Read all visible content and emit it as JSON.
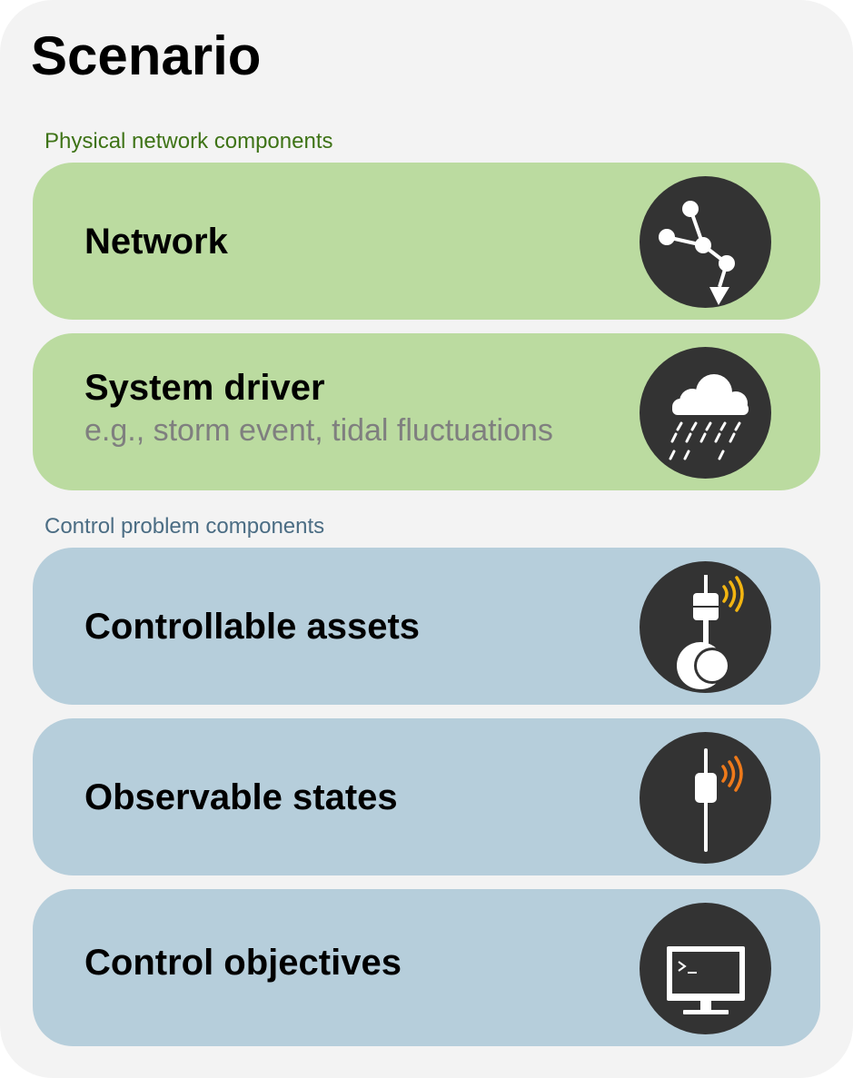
{
  "title": "Scenario",
  "sections": {
    "physical": {
      "label": "Physical network components",
      "color": "#3e7316"
    },
    "control": {
      "label": "Control problem components",
      "color": "#4b6d84"
    }
  },
  "cards": [
    {
      "heading": "Network",
      "subtext": "",
      "icon": "network-icon",
      "group": "physical"
    },
    {
      "heading": "System driver",
      "subtext": "e.g., storm event, tidal fluctuations",
      "icon": "rain-cloud-icon",
      "group": "physical"
    },
    {
      "heading": "Controllable assets",
      "subtext": "",
      "icon": "valve-icon",
      "group": "control"
    },
    {
      "heading": "Observable states",
      "subtext": "",
      "icon": "sensor-icon",
      "group": "control"
    },
    {
      "heading": "Control objectives",
      "subtext": "",
      "icon": "computer-terminal-icon",
      "group": "control"
    }
  ],
  "colors": {
    "panel_background": "#f3f3f3",
    "physical_card": "#bbdba0",
    "control_card": "#b6cedb",
    "icon_background": "#333333",
    "signal_yellow": "#f2b511",
    "signal_orange": "#ef7a1a"
  }
}
